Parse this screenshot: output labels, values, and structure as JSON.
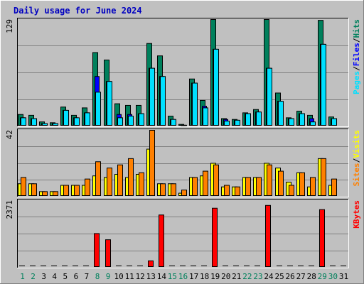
{
  "chart_data": {
    "type": "bar",
    "title": "Daily usage for June 2024",
    "days": [
      "1",
      "2",
      "3",
      "4",
      "5",
      "6",
      "7",
      "8",
      "9",
      "10",
      "11",
      "12",
      "13",
      "14",
      "15",
      "16",
      "17",
      "18",
      "19",
      "20",
      "21",
      "22",
      "23",
      "24",
      "25",
      "26",
      "27",
      "28",
      "29",
      "30",
      "31"
    ],
    "weekend_days": [
      "1",
      "2",
      "8",
      "9",
      "15",
      "16",
      "22",
      "23",
      "29",
      "30"
    ],
    "panels": [
      {
        "id": "hits-files-pages",
        "max_label": "129",
        "ylim": [
          0,
          129
        ],
        "legend": [
          "Pages",
          "Files",
          "Hits"
        ],
        "series": [
          {
            "name": "Hits",
            "color": "#00805c",
            "values": [
              14,
              13,
              5,
              4,
              23,
              13,
              22,
              89,
              80,
              27,
              25,
              25,
              100,
              85,
              12,
              2,
              57,
              31,
              129,
              9,
              8,
              16,
              20,
              129,
              40,
              10,
              18,
              13,
              128,
              11,
              0
            ]
          },
          {
            "name": "Files",
            "color": "#0000ff",
            "values": [
              10,
              9,
              3,
              3,
              19,
              10,
              16,
              60,
              54,
              14,
              14,
              15,
              70,
              60,
              8,
              1,
              52,
              24,
              93,
              8,
              7,
              15,
              17,
              70,
              30,
              9,
              15,
              9,
              99,
              9,
              0
            ]
          },
          {
            "name": "Pages",
            "color": "#00e0ff",
            "values": [
              10,
              9,
              3,
              3,
              19,
              10,
              16,
              41,
              54,
              10,
              12,
              15,
              70,
              60,
              8,
              1,
              52,
              22,
              93,
              6,
              7,
              15,
              17,
              70,
              30,
              9,
              15,
              5,
              99,
              9,
              0
            ]
          }
        ]
      },
      {
        "id": "visits-sites",
        "max_label": "42",
        "ylim": [
          0,
          42
        ],
        "legend": [
          "Sites",
          "Visits"
        ],
        "series": [
          {
            "name": "Visits",
            "color": "#ffff00",
            "values": [
              8,
              8,
              3,
              3,
              7,
              7,
              7,
              13,
              12,
              14,
              12,
              14,
              30,
              8,
              8,
              2,
              12,
              13,
              21,
              6,
              6,
              12,
              12,
              21,
              18,
              9,
              15,
              6,
              24,
              7,
              0
            ]
          },
          {
            "name": "Sites",
            "color": "#ff8000",
            "values": [
              12,
              8,
              3,
              3,
              7,
              7,
              11,
              22,
              18,
              20,
              24,
              15,
              42,
              8,
              8,
              4,
              12,
              16,
              20,
              7,
              6,
              12,
              12,
              20,
              16,
              7,
              15,
              12,
              24,
              11,
              0
            ]
          }
        ]
      },
      {
        "id": "kbytes",
        "max_label": "2371",
        "ylim": [
          0,
          2371
        ],
        "legend": [
          "KBytes"
        ],
        "series": [
          {
            "name": "KBytes",
            "color": "#ff0000",
            "values": [
              0,
              0,
              0,
              0,
              0,
              0,
              0,
              1200,
              980,
              0,
              0,
              0,
              230,
              1860,
              0,
              0,
              0,
              0,
              2100,
              0,
              0,
              0,
              0,
              2200,
              0,
              0,
              0,
              0,
              2050,
              0,
              0
            ]
          }
        ]
      }
    ]
  }
}
